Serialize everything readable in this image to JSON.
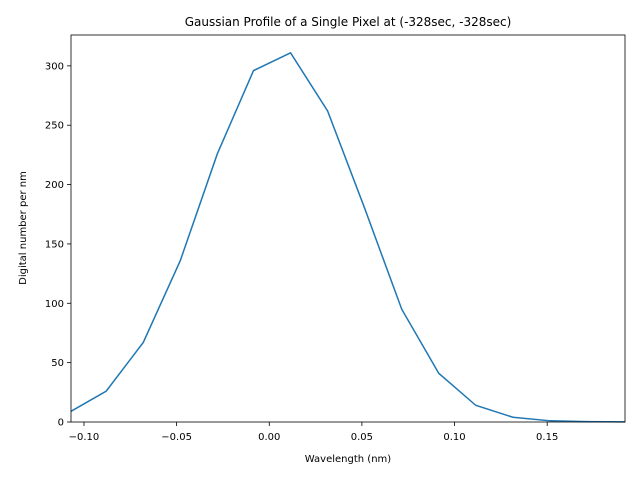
{
  "chart_data": {
    "type": "line",
    "title": "Gaussian Profile of a Single Pixel at (-328sec, -328sec)",
    "xlabel": "Wavelength (nm)",
    "ylabel": "Digital number per nm",
    "xlim": [
      -0.107,
      0.192
    ],
    "ylim": [
      0,
      326
    ],
    "xticks": [
      -0.1,
      -0.05,
      0.0,
      0.05,
      0.1,
      0.15
    ],
    "xtick_labels": [
      "−0.10",
      "−0.05",
      "0.00",
      "0.05",
      "0.10",
      "0.15"
    ],
    "yticks": [
      0,
      50,
      100,
      150,
      200,
      250,
      300
    ],
    "ytick_labels": [
      "0",
      "50",
      "100",
      "150",
      "200",
      "250",
      "300"
    ],
    "grid": false,
    "series": [
      {
        "color": "#1f77b4",
        "x": [
          -0.107,
          -0.088,
          -0.068,
          -0.048,
          -0.028,
          -0.0085,
          0.0115,
          0.0315,
          0.0515,
          0.0715,
          0.0915,
          0.1115,
          0.1315,
          0.1515,
          0.1715,
          0.192
        ],
        "y": [
          9,
          26,
          67,
          136,
          226,
          296,
          311,
          262,
          180,
          95,
          41,
          14,
          4,
          1,
          0.3,
          0.1
        ]
      }
    ]
  }
}
